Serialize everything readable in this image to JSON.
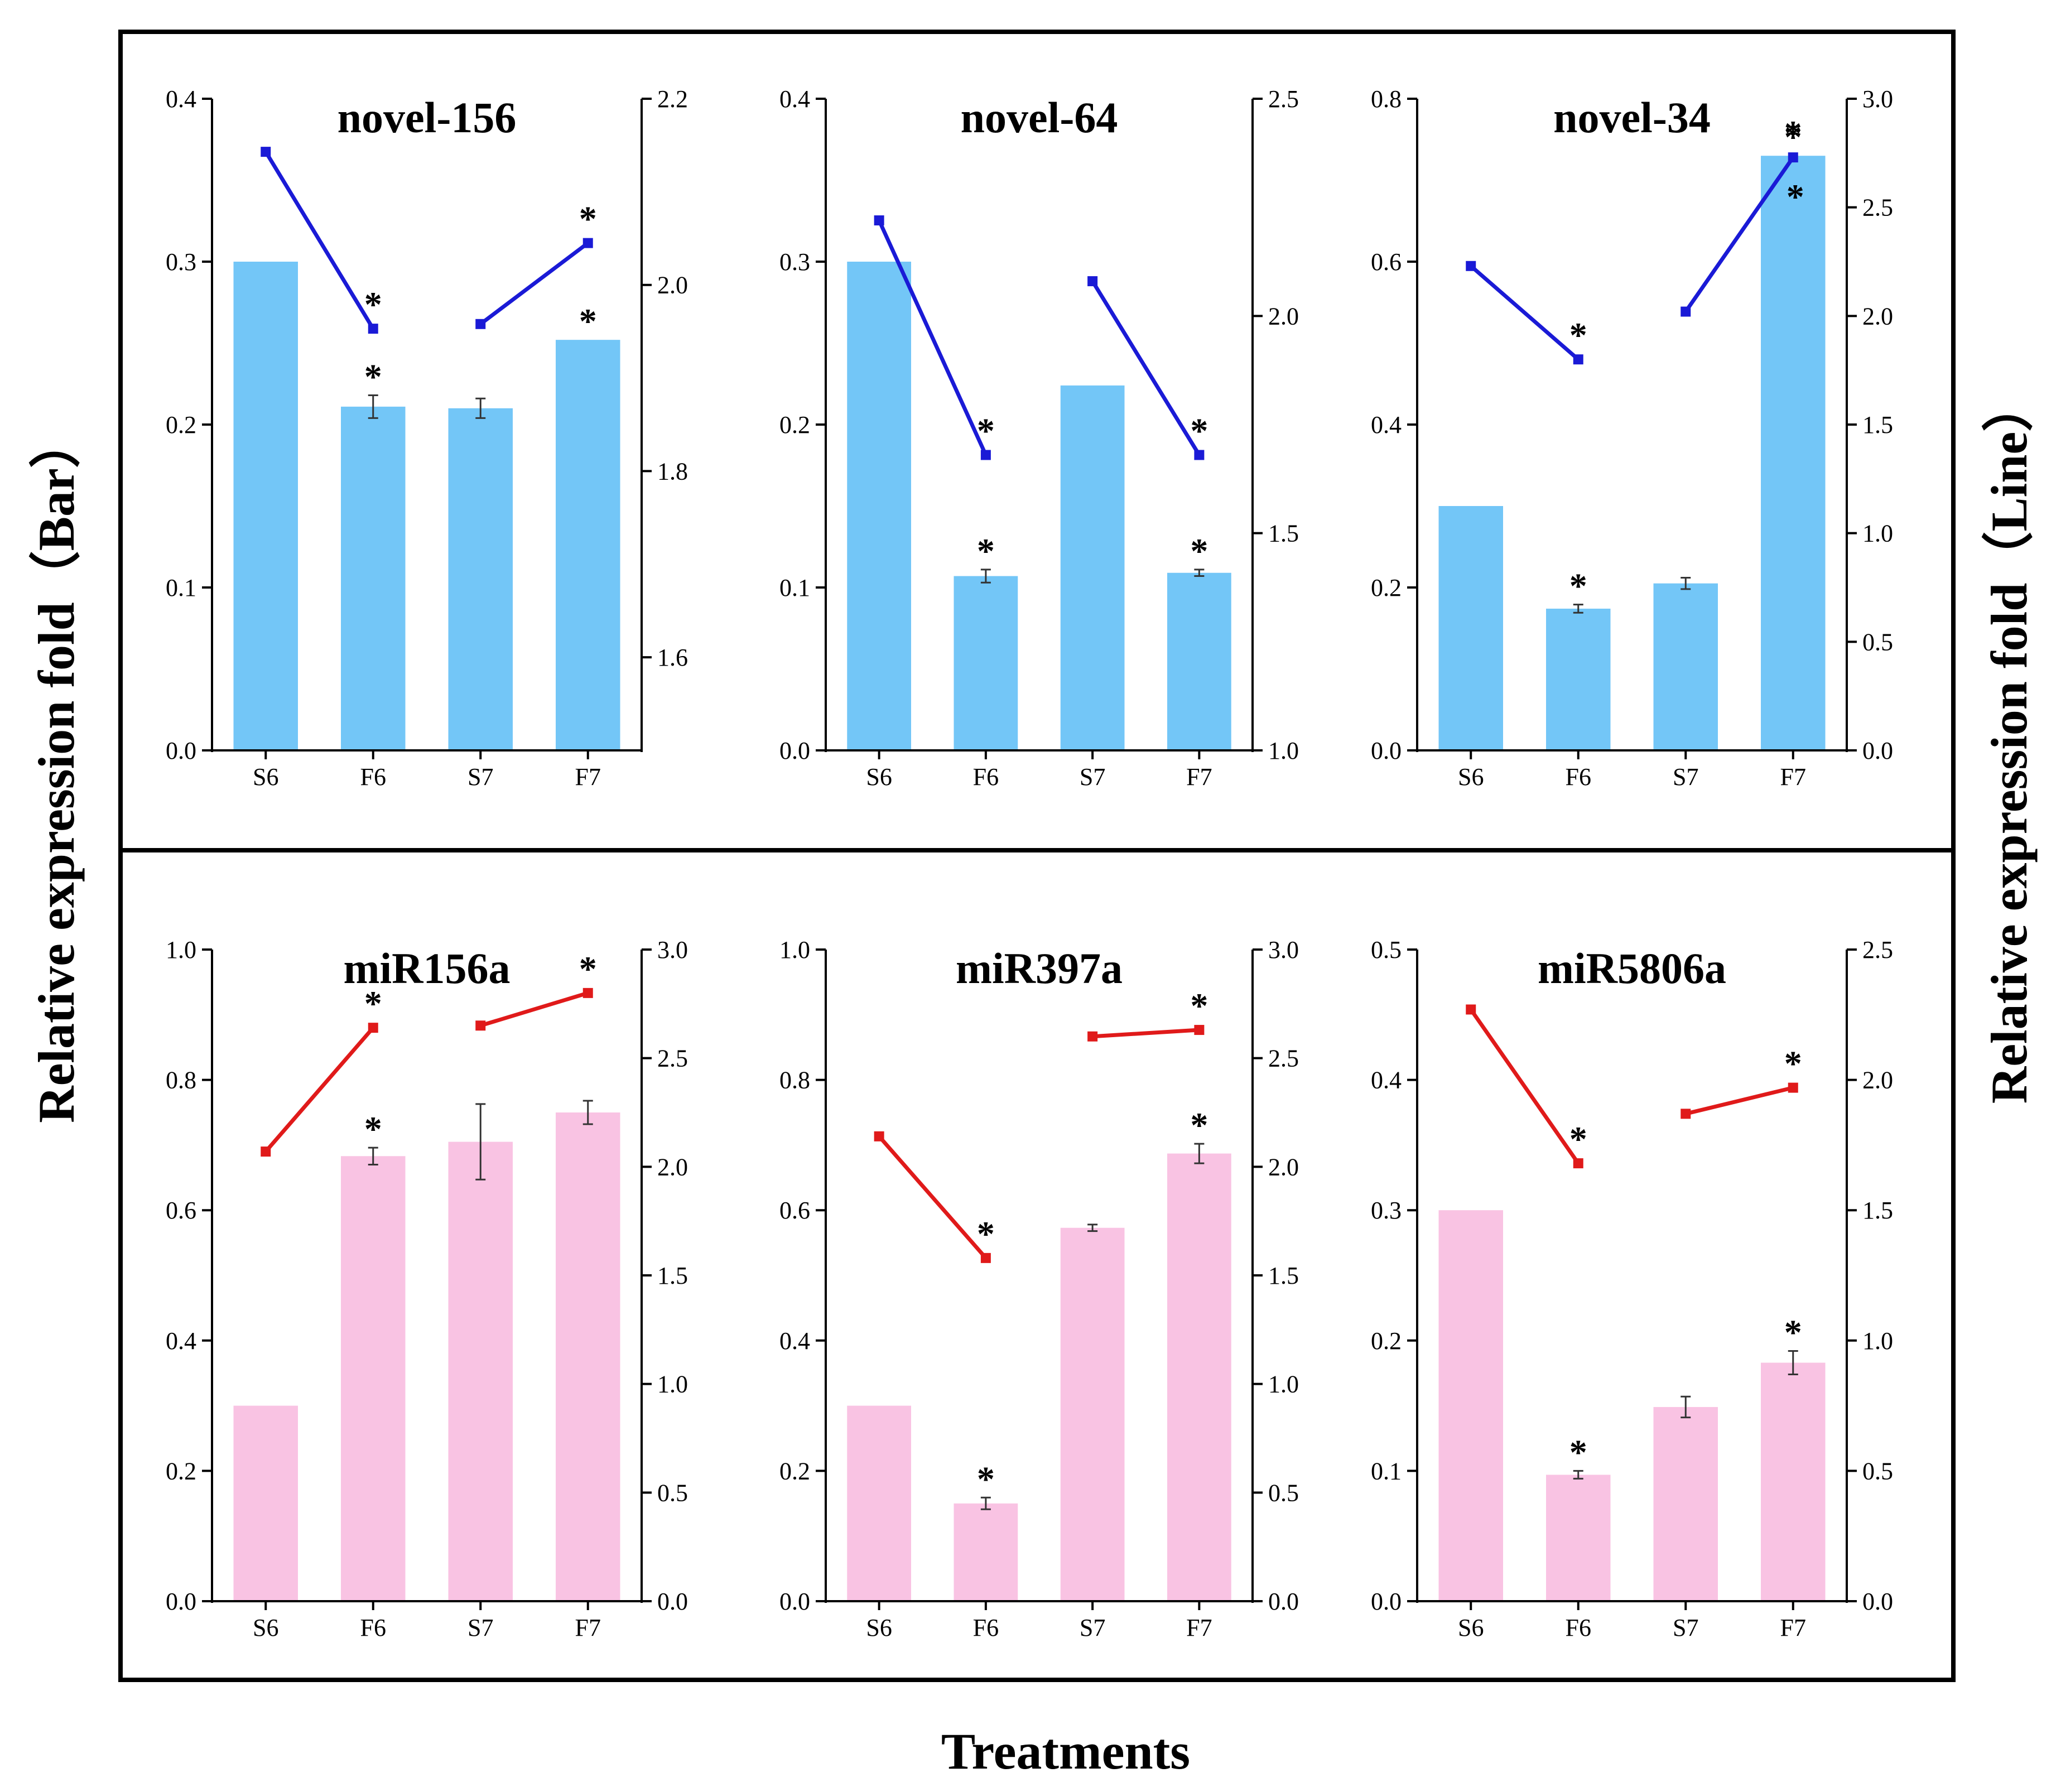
{
  "figure": {
    "left_axis_label": "Relative expression fold（Bar）",
    "right_axis_label": "Relative expression fold（Line）",
    "x_axis_label": "Treatments",
    "colors": {
      "bar_blue": "#73c6f7",
      "bar_pink": "#f9c3e3",
      "line_blue": "#1a1ad6",
      "line_red": "#e01a1a",
      "axis": "#000000"
    }
  },
  "chart_data": [
    {
      "type": "bar+line",
      "title": "novel-156",
      "categories": [
        "S6",
        "F6",
        "S7",
        "F7"
      ],
      "bar_color": "bar_blue",
      "line_color": "line_blue",
      "bar": {
        "values": [
          0.3,
          0.211,
          0.21,
          0.252
        ],
        "errors": [
          0,
          0.007,
          0.006,
          0
        ],
        "sig": [
          false,
          true,
          false,
          true
        ]
      },
      "line": {
        "segments": [
          [
            0,
            1
          ],
          [
            2,
            3
          ]
        ],
        "values": [
          2.143,
          1.953,
          1.958,
          2.045
        ],
        "sig": [
          false,
          true,
          false,
          true
        ]
      },
      "ylim_left": [
        0,
        0.4
      ],
      "yticks_left": [
        "0.0",
        "0.1",
        "0.2",
        "0.3",
        "0.4"
      ],
      "ylim_right": [
        1.5,
        2.2
      ],
      "yticks_right_values": [
        1.6,
        1.8,
        2.0,
        2.2
      ],
      "yticks_right": [
        "1.6",
        "1.8",
        "2.0",
        "2.2"
      ]
    },
    {
      "type": "bar+line",
      "title": "novel-64",
      "categories": [
        "S6",
        "F6",
        "S7",
        "F7"
      ],
      "bar_color": "bar_blue",
      "line_color": "line_blue",
      "bar": {
        "values": [
          0.3,
          0.107,
          0.224,
          0.109
        ],
        "errors": [
          0,
          0.004,
          0,
          0.002
        ],
        "sig": [
          false,
          true,
          false,
          true
        ]
      },
      "line": {
        "segments": [
          [
            0,
            1
          ],
          [
            2,
            3
          ]
        ],
        "values": [
          2.22,
          1.68,
          2.08,
          1.68
        ],
        "sig": [
          false,
          true,
          false,
          true
        ]
      },
      "ylim_left": [
        0,
        0.4
      ],
      "yticks_left": [
        "0.0",
        "0.1",
        "0.2",
        "0.3",
        "0.4"
      ],
      "ylim_right": [
        1.0,
        2.5
      ],
      "yticks_right_values": [
        1.0,
        1.5,
        2.0,
        2.5
      ],
      "yticks_right": [
        "1.0",
        "1.5",
        "2.0",
        "2.5"
      ]
    },
    {
      "type": "bar+line",
      "title": "novel-34",
      "categories": [
        "S6",
        "F6",
        "S7",
        "F7"
      ],
      "bar_color": "bar_blue",
      "line_color": "line_blue",
      "bar": {
        "values": [
          0.3,
          0.174,
          0.205,
          0.73
        ],
        "errors": [
          0,
          0.005,
          0.007,
          0
        ],
        "sig": [
          false,
          true,
          false,
          true
        ]
      },
      "line": {
        "segments": [
          [
            0,
            1
          ],
          [
            2,
            3
          ]
        ],
        "values": [
          2.23,
          1.8,
          2.02,
          2.73
        ],
        "sig": [
          false,
          true,
          false,
          true
        ]
      },
      "ylim_left": [
        0,
        0.8
      ],
      "yticks_left": [
        "0.0",
        "0.2",
        "0.4",
        "0.6",
        "0.8"
      ],
      "ylim_right": [
        0,
        3.0
      ],
      "yticks_right_values": [
        0,
        0.5,
        1.0,
        1.5,
        2.0,
        2.5,
        3.0
      ],
      "yticks_right": [
        "0.0",
        "0.5",
        "1.0",
        "1.5",
        "2.0",
        "2.5",
        "3.0"
      ]
    },
    {
      "type": "bar+line",
      "title": "miR156a",
      "categories": [
        "S6",
        "F6",
        "S7",
        "F7"
      ],
      "bar_color": "bar_pink",
      "line_color": "line_red",
      "bar": {
        "values": [
          0.3,
          0.683,
          0.705,
          0.75
        ],
        "errors": [
          0,
          0.013,
          0.058,
          0.018
        ],
        "sig": [
          false,
          true,
          false,
          false
        ]
      },
      "line": {
        "segments": [
          [
            0,
            1
          ],
          [
            2,
            3
          ]
        ],
        "values": [
          2.07,
          2.64,
          2.65,
          2.8
        ],
        "sig": [
          false,
          true,
          false,
          true
        ]
      },
      "ylim_left": [
        0,
        1.0
      ],
      "yticks_left": [
        "0.0",
        "0.2",
        "0.4",
        "0.6",
        "0.8",
        "1.0"
      ],
      "ylim_right": [
        0,
        3.0
      ],
      "yticks_right_values": [
        0,
        0.5,
        1.0,
        1.5,
        2.0,
        2.5,
        3.0
      ],
      "yticks_right": [
        "0.0",
        "0.5",
        "1.0",
        "1.5",
        "2.0",
        "2.5",
        "3.0"
      ]
    },
    {
      "type": "bar+line",
      "title": "miR397a",
      "categories": [
        "S6",
        "F6",
        "S7",
        "F7"
      ],
      "bar_color": "bar_pink",
      "line_color": "line_red",
      "bar": {
        "values": [
          0.3,
          0.15,
          0.573,
          0.687
        ],
        "errors": [
          0,
          0.009,
          0.005,
          0.015
        ],
        "sig": [
          false,
          true,
          false,
          true
        ]
      },
      "line": {
        "segments": [
          [
            0,
            1
          ],
          [
            2,
            3
          ]
        ],
        "values": [
          2.14,
          1.58,
          2.6,
          2.63
        ],
        "sig": [
          false,
          true,
          false,
          true
        ]
      },
      "ylim_left": [
        0,
        1.0
      ],
      "yticks_left": [
        "0.0",
        "0.2",
        "0.4",
        "0.6",
        "0.8",
        "1.0"
      ],
      "ylim_right": [
        0,
        3.0
      ],
      "yticks_right_values": [
        0,
        0.5,
        1.0,
        1.5,
        2.0,
        2.5,
        3.0
      ],
      "yticks_right": [
        "0.0",
        "0.5",
        "1.0",
        "1.5",
        "2.0",
        "2.5",
        "3.0"
      ]
    },
    {
      "type": "bar+line",
      "title": "miR5806a",
      "categories": [
        "S6",
        "F6",
        "S7",
        "F7"
      ],
      "bar_color": "bar_pink",
      "line_color": "line_red",
      "bar": {
        "values": [
          0.3,
          0.097,
          0.149,
          0.183
        ],
        "errors": [
          0,
          0.003,
          0.008,
          0.009
        ],
        "sig": [
          false,
          true,
          false,
          true
        ]
      },
      "line": {
        "segments": [
          [
            0,
            1
          ],
          [
            2,
            3
          ]
        ],
        "values": [
          2.27,
          1.68,
          1.87,
          1.97
        ],
        "sig": [
          false,
          true,
          false,
          true
        ]
      },
      "ylim_left": [
        0,
        0.5
      ],
      "yticks_left": [
        "0.0",
        "0.1",
        "0.2",
        "0.3",
        "0.4",
        "0.5"
      ],
      "ylim_right": [
        0,
        2.5
      ],
      "yticks_right_values": [
        0,
        0.5,
        1.0,
        1.5,
        2.0,
        2.5
      ],
      "yticks_right": [
        "0.0",
        "0.5",
        "1.0",
        "1.5",
        "2.0",
        "2.5"
      ]
    }
  ]
}
